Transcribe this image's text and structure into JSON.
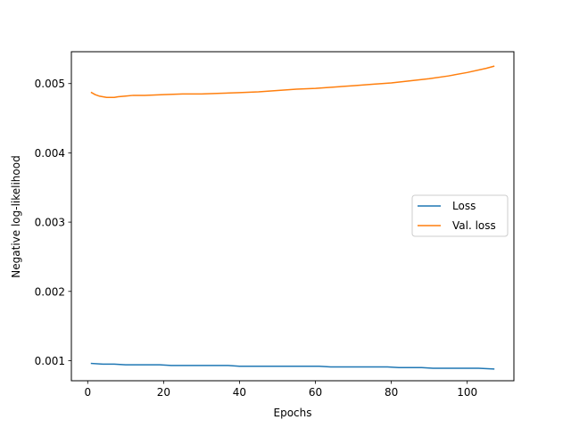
{
  "chart_data": {
    "type": "line",
    "title": "",
    "xlabel": "Epochs",
    "ylabel": "Negative log-likelihood",
    "xlim": [
      -4.3,
      112.3
    ],
    "ylim": [
      0.00071,
      0.00546
    ],
    "xticks": [
      0,
      20,
      40,
      60,
      80,
      100
    ],
    "yticks": [
      0.001,
      0.002,
      0.003,
      0.004,
      0.005
    ],
    "xtick_labels": [
      "0",
      "20",
      "40",
      "60",
      "80",
      "100"
    ],
    "ytick_labels": [
      "0.001",
      "0.002",
      "0.003",
      "0.004",
      "0.005"
    ],
    "grid": false,
    "legend_position": "right",
    "series": [
      {
        "name": "Loss",
        "color": "#1f77b4",
        "x": [
          1,
          4,
          7,
          10,
          13,
          16,
          19,
          22,
          25,
          28,
          31,
          34,
          37,
          40,
          43,
          46,
          49,
          52,
          55,
          58,
          61,
          64,
          67,
          70,
          73,
          76,
          79,
          82,
          85,
          88,
          91,
          94,
          97,
          100,
          103,
          107
        ],
        "y": [
          0.00096,
          0.00095,
          0.00095,
          0.00094,
          0.00094,
          0.00094,
          0.00094,
          0.00093,
          0.00093,
          0.00093,
          0.00093,
          0.00093,
          0.00093,
          0.00092,
          0.00092,
          0.00092,
          0.00092,
          0.00092,
          0.00092,
          0.00092,
          0.00092,
          0.00091,
          0.00091,
          0.00091,
          0.00091,
          0.00091,
          0.00091,
          0.0009,
          0.0009,
          0.0009,
          0.00089,
          0.00089,
          0.00089,
          0.00089,
          0.00089,
          0.00088
        ]
      },
      {
        "name": "Val. loss",
        "color": "#ff7f0e",
        "x": [
          1,
          2,
          3,
          4,
          5,
          6,
          7,
          8,
          10,
          12,
          15,
          20,
          25,
          30,
          35,
          40,
          45,
          50,
          55,
          60,
          65,
          70,
          75,
          80,
          85,
          90,
          95,
          100,
          105,
          107
        ],
        "y": [
          0.00487,
          0.00484,
          0.00482,
          0.00481,
          0.0048,
          0.0048,
          0.0048,
          0.00481,
          0.00482,
          0.00483,
          0.00483,
          0.00484,
          0.00485,
          0.00485,
          0.00486,
          0.00487,
          0.00488,
          0.0049,
          0.00492,
          0.00493,
          0.00495,
          0.00497,
          0.00499,
          0.00501,
          0.00504,
          0.00507,
          0.00511,
          0.00516,
          0.00522,
          0.00525
        ]
      }
    ]
  }
}
